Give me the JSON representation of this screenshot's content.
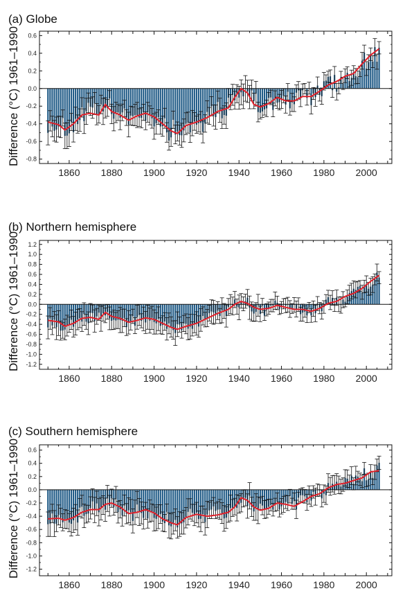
{
  "panels": [
    {
      "title": "(a) Globe",
      "ylabel": "Difference (°C) 1961–1990"
    },
    {
      "title": "(b) Northern hemisphere",
      "ylabel": "Difference (°C) 1961–1990"
    },
    {
      "title": "(c) Southern hemisphere",
      "ylabel": "Difference (°C) 1961–1990"
    }
  ],
  "colors": {
    "bar": "#1f5a86",
    "smooth": "#e0202a",
    "error": "#111111"
  },
  "chart_data": [
    {
      "type": "bar",
      "title": "(a) Globe",
      "xlabel": "",
      "ylabel": "Difference (°C) 1961–1990",
      "xlim": [
        1846,
        2012
      ],
      "ylim": [
        -0.85,
        0.65
      ],
      "xticks": [
        1860,
        1880,
        1900,
        1920,
        1940,
        1960,
        1980,
        2000
      ],
      "yticks": [
        -0.8,
        -0.6,
        -0.4,
        -0.2,
        0.0,
        0.2,
        0.4,
        0.6
      ],
      "ytick_labels": [
        "-0.8",
        "-0.6",
        "-0.4",
        "-0.2",
        "0.0",
        "0.2",
        "0.4",
        "0.6"
      ],
      "grid": false,
      "smooth_anchors": {
        "x": [
          1850,
          1855,
          1858,
          1862,
          1866,
          1870,
          1874,
          1877,
          1880,
          1884,
          1888,
          1892,
          1896,
          1900,
          1904,
          1908,
          1911,
          1915,
          1920,
          1925,
          1930,
          1935,
          1938,
          1941,
          1944,
          1947,
          1950,
          1954,
          1958,
          1962,
          1966,
          1970,
          1974,
          1978,
          1982,
          1986,
          1990,
          1994,
          1998,
          2002,
          2006
        ],
        "y": [
          -0.38,
          -0.41,
          -0.47,
          -0.4,
          -0.3,
          -0.28,
          -0.3,
          -0.18,
          -0.26,
          -0.3,
          -0.36,
          -0.31,
          -0.28,
          -0.32,
          -0.4,
          -0.48,
          -0.51,
          -0.42,
          -0.38,
          -0.33,
          -0.26,
          -0.22,
          -0.1,
          0.0,
          -0.05,
          -0.18,
          -0.21,
          -0.17,
          -0.1,
          -0.14,
          -0.14,
          -0.09,
          -0.09,
          -0.03,
          0.04,
          0.08,
          0.14,
          0.17,
          0.28,
          0.38,
          0.45
        ]
      },
      "error_half_width": 0.13
    },
    {
      "type": "bar",
      "title": "(b) Northern hemisphere",
      "xlabel": "",
      "ylabel": "Difference (°C) 1961–1990",
      "xlim": [
        1846,
        2012
      ],
      "ylim": [
        -1.3,
        1.28
      ],
      "xticks": [
        1860,
        1880,
        1900,
        1920,
        1940,
        1960,
        1980,
        2000
      ],
      "yticks": [
        -1.2,
        -1.0,
        -0.8,
        -0.6,
        -0.4,
        -0.2,
        0.0,
        0.2,
        0.4,
        0.6,
        0.8,
        1.0,
        1.2
      ],
      "ytick_labels": [
        "-1.2",
        "-1.0",
        "-0.8",
        "-0.6",
        "-0.4",
        "-0.2",
        "0.0",
        "0.2",
        "0.4",
        "0.6",
        "0.8",
        "1.0",
        "1.2"
      ],
      "grid": false,
      "smooth_anchors": {
        "x": [
          1850,
          1855,
          1858,
          1862,
          1866,
          1870,
          1874,
          1877,
          1880,
          1884,
          1888,
          1892,
          1896,
          1900,
          1904,
          1908,
          1911,
          1915,
          1920,
          1925,
          1930,
          1935,
          1938,
          1941,
          1944,
          1947,
          1950,
          1954,
          1958,
          1962,
          1966,
          1970,
          1974,
          1978,
          1982,
          1986,
          1990,
          1994,
          1998,
          2002,
          2006
        ],
        "y": [
          -0.32,
          -0.35,
          -0.44,
          -0.38,
          -0.28,
          -0.26,
          -0.3,
          -0.16,
          -0.24,
          -0.28,
          -0.36,
          -0.32,
          -0.27,
          -0.3,
          -0.38,
          -0.46,
          -0.5,
          -0.44,
          -0.38,
          -0.28,
          -0.18,
          -0.1,
          0.0,
          0.06,
          0.02,
          -0.06,
          -0.1,
          -0.08,
          -0.02,
          -0.06,
          -0.1,
          -0.1,
          -0.14,
          -0.08,
          0.02,
          0.06,
          0.16,
          0.22,
          0.32,
          0.46,
          0.58
        ]
      },
      "error_half_width": 0.22
    },
    {
      "type": "bar",
      "title": "(c) Southern hemisphere",
      "xlabel": "",
      "ylabel": "Difference (°C) 1961–1990",
      "xlim": [
        1846,
        2012
      ],
      "ylim": [
        -1.3,
        0.68
      ],
      "xticks": [
        1860,
        1880,
        1900,
        1920,
        1940,
        1960,
        1980,
        2000
      ],
      "yticks": [
        -1.2,
        -1.0,
        -0.8,
        -0.6,
        -0.4,
        -0.2,
        0.0,
        0.2,
        0.4,
        0.6
      ],
      "ytick_labels": [
        "-1.2",
        "-1.0",
        "-0.8",
        "-0.6",
        "-0.4",
        "-0.2",
        "0.0",
        "0.2",
        "0.4",
        "0.6"
      ],
      "grid": false,
      "smooth_anchors": {
        "x": [
          1850,
          1855,
          1858,
          1862,
          1866,
          1870,
          1874,
          1877,
          1880,
          1884,
          1888,
          1892,
          1896,
          1900,
          1904,
          1908,
          1911,
          1915,
          1920,
          1925,
          1930,
          1935,
          1938,
          1941,
          1944,
          1947,
          1950,
          1954,
          1958,
          1962,
          1966,
          1970,
          1974,
          1978,
          1982,
          1986,
          1990,
          1994,
          1998,
          2002,
          2006
        ],
        "y": [
          -0.44,
          -0.43,
          -0.46,
          -0.42,
          -0.34,
          -0.3,
          -0.3,
          -0.22,
          -0.2,
          -0.26,
          -0.36,
          -0.34,
          -0.3,
          -0.35,
          -0.44,
          -0.5,
          -0.53,
          -0.42,
          -0.37,
          -0.4,
          -0.38,
          -0.34,
          -0.26,
          -0.12,
          -0.16,
          -0.26,
          -0.31,
          -0.28,
          -0.2,
          -0.22,
          -0.25,
          -0.18,
          -0.1,
          -0.06,
          0.03,
          0.08,
          0.1,
          0.14,
          0.18,
          0.27,
          0.29
        ]
      },
      "error_half_width": 0.18
    }
  ]
}
